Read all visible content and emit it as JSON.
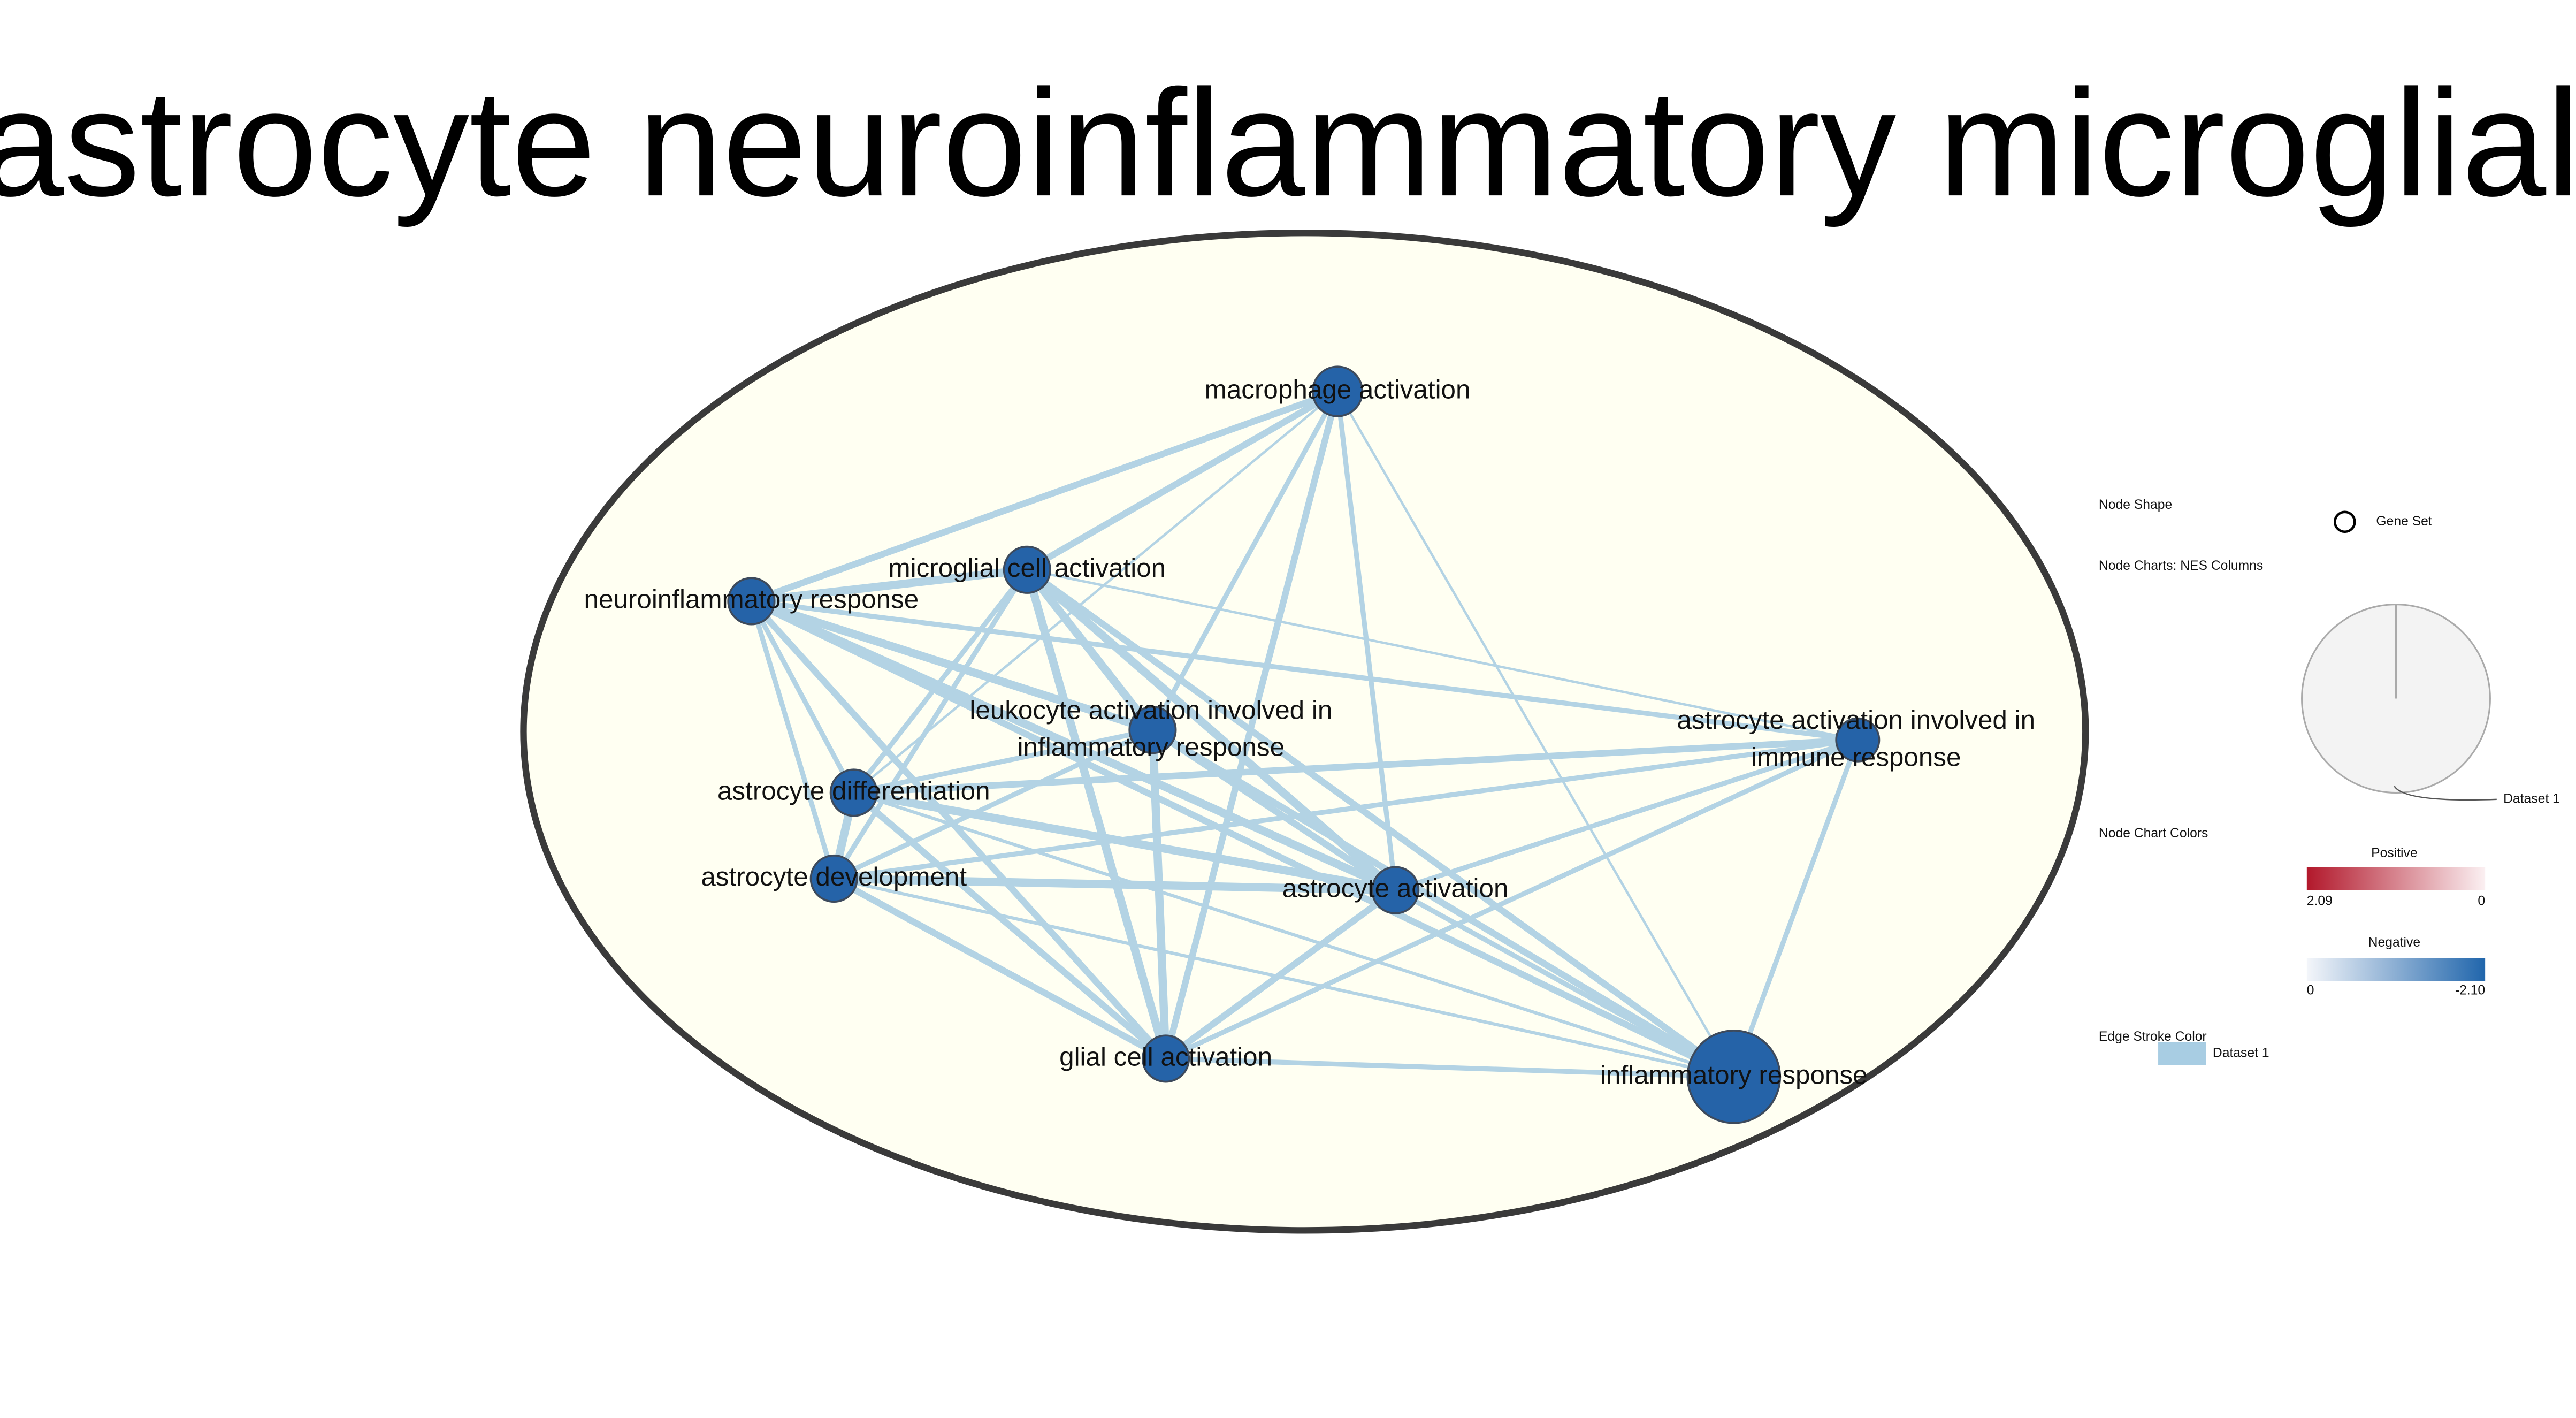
{
  "title": "astrocyte neuroinflammatory microglial",
  "nodes": [
    {
      "lines": [
        "macrophage activation"
      ]
    },
    {
      "lines": [
        "microglial cell activation"
      ]
    },
    {
      "lines": [
        "neuroinflammatory response"
      ]
    },
    {
      "lines": [
        "leukocyte activation involved in",
        "inflammatory response"
      ]
    },
    {
      "lines": [
        "astrocyte activation involved in",
        "immune response"
      ]
    },
    {
      "lines": [
        "astrocyte differentiation"
      ]
    },
    {
      "lines": [
        "astrocyte development"
      ]
    },
    {
      "lines": [
        "astrocyte activation"
      ]
    },
    {
      "lines": [
        "glial cell activation"
      ]
    },
    {
      "lines": [
        "inflammatory response"
      ]
    }
  ],
  "legend": {
    "node_shape": {
      "heading": "Node Shape",
      "item": "Gene Set"
    },
    "node_charts": {
      "heading": "Node Charts: NES Columns",
      "item": "Dataset 1"
    },
    "node_chart_colors": {
      "heading": "Node Chart Colors",
      "positive": {
        "title": "Positive",
        "min_label": "2.09",
        "max_label": "0"
      },
      "negative": {
        "title": "Negative",
        "min_label": "0",
        "max_label": "-2.10"
      }
    },
    "edge_stroke": {
      "heading": "Edge Stroke Color",
      "item": "Dataset 1"
    }
  }
}
